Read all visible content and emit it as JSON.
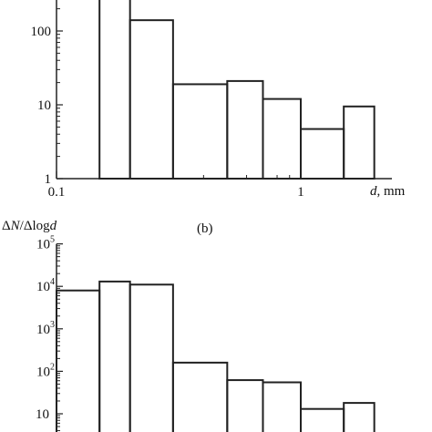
{
  "chart_data": [
    {
      "type": "bar",
      "panel": "a",
      "x_scale": "log",
      "y_scale": "log",
      "bin_edges": [
        0.1,
        0.15,
        0.2,
        0.3,
        0.5,
        0.7,
        1.0,
        1.5,
        2.0
      ],
      "values": [
        1,
        300,
        140,
        19,
        21,
        12,
        4.7,
        9.5
      ],
      "xlim": [
        0.1,
        3.0
      ],
      "ylim": [
        1,
        300
      ],
      "xlabel": "d, mm",
      "x_ticks": [
        {
          "value": 0.1,
          "label": "0.1"
        },
        {
          "value": 1,
          "label": "1"
        }
      ],
      "y_ticks": [
        {
          "value": 1,
          "label": "1"
        },
        {
          "value": 10,
          "label": "10"
        },
        {
          "value": 100,
          "label": "100"
        }
      ]
    },
    {
      "type": "bar",
      "panel": "b",
      "panel_label": "(b)",
      "x_scale": "log",
      "y_scale": "log",
      "bin_edges": [
        0.1,
        0.15,
        0.2,
        0.3,
        0.5,
        0.7,
        1.0,
        1.5,
        2.0
      ],
      "values": [
        8000,
        13000,
        11000,
        160,
        62,
        55,
        13,
        18
      ],
      "xlim": [
        0.1,
        3.0
      ],
      "ylim": [
        3,
        100000
      ],
      "ylabel": "ΔN/Δlogd",
      "y_ticks": [
        {
          "value": 10,
          "base": "10",
          "exp": ""
        },
        {
          "value": 100,
          "base": "10",
          "exp": "2"
        },
        {
          "value": 1000,
          "base": "10",
          "exp": "3"
        },
        {
          "value": 10000,
          "base": "10",
          "exp": "4"
        },
        {
          "value": 100000,
          "base": "10",
          "exp": "5"
        }
      ]
    }
  ]
}
